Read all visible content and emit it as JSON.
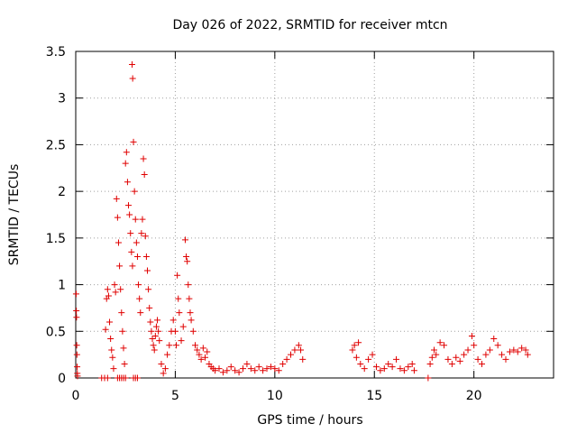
{
  "chart_data": {
    "type": "scatter",
    "title": "Day 026 of 2022, SRMTID for receiver mtcn",
    "xlabel": "GPS time / hours",
    "ylabel": "SRMTID / TECUs",
    "xlim": [
      0,
      24
    ],
    "ylim": [
      0,
      3.5
    ],
    "x_ticks": [
      0,
      5,
      10,
      15,
      20
    ],
    "x_tick_labels": [
      "0",
      "5",
      "10",
      "15",
      "20"
    ],
    "y_ticks": [
      0,
      0.5,
      1,
      1.5,
      2,
      2.5,
      3,
      3.5
    ],
    "y_tick_labels": [
      "0",
      "0.5",
      "1",
      "1.5",
      "2",
      "2.5",
      "3",
      "3.5"
    ],
    "grid": true,
    "marker": "+",
    "color": "#e00000",
    "series": [
      {
        "name": "SRMTID",
        "points": [
          [
            0.02,
            0.9
          ],
          [
            0.03,
            0.72
          ],
          [
            0.04,
            0.65
          ],
          [
            0.05,
            0.35
          ],
          [
            0.06,
            0.25
          ],
          [
            0.07,
            0.12
          ],
          [
            0.08,
            0.05
          ],
          [
            0.09,
            0.02
          ],
          [
            1.3,
            0.0
          ],
          [
            1.45,
            0.0
          ],
          [
            1.6,
            0.0
          ],
          [
            1.5,
            0.52
          ],
          [
            1.55,
            0.85
          ],
          [
            1.6,
            0.95
          ],
          [
            1.65,
            0.88
          ],
          [
            1.7,
            0.6
          ],
          [
            1.75,
            0.42
          ],
          [
            1.8,
            0.3
          ],
          [
            1.85,
            0.22
          ],
          [
            1.9,
            0.1
          ],
          [
            1.95,
            1.0
          ],
          [
            2.0,
            0.92
          ],
          [
            2.05,
            1.92
          ],
          [
            2.1,
            1.72
          ],
          [
            2.15,
            1.45
          ],
          [
            2.2,
            1.2
          ],
          [
            2.25,
            0.95
          ],
          [
            2.3,
            0.7
          ],
          [
            2.35,
            0.5
          ],
          [
            2.4,
            0.32
          ],
          [
            2.45,
            0.15
          ],
          [
            2.1,
            0.0
          ],
          [
            2.2,
            0.0
          ],
          [
            2.3,
            0.0
          ],
          [
            2.4,
            0.0
          ],
          [
            2.5,
            0.0
          ],
          [
            2.9,
            0.0
          ],
          [
            3.0,
            0.0
          ],
          [
            3.1,
            0.0
          ],
          [
            2.5,
            2.3
          ],
          [
            2.55,
            2.42
          ],
          [
            2.6,
            2.1
          ],
          [
            2.65,
            1.85
          ],
          [
            2.7,
            1.75
          ],
          [
            2.75,
            1.55
          ],
          [
            2.8,
            1.35
          ],
          [
            2.85,
            1.2
          ],
          [
            2.9,
            2.53
          ],
          [
            2.95,
            2.0
          ],
          [
            3.0,
            1.7
          ],
          [
            2.83,
            3.36
          ],
          [
            2.86,
            3.21
          ],
          [
            3.05,
            1.45
          ],
          [
            3.1,
            1.3
          ],
          [
            3.15,
            1.0
          ],
          [
            3.2,
            0.85
          ],
          [
            3.25,
            0.7
          ],
          [
            3.3,
            1.55
          ],
          [
            3.35,
            1.7
          ],
          [
            3.4,
            2.35
          ],
          [
            3.45,
            2.18
          ],
          [
            3.5,
            1.52
          ],
          [
            3.55,
            1.3
          ],
          [
            3.6,
            1.15
          ],
          [
            3.65,
            0.95
          ],
          [
            3.7,
            0.75
          ],
          [
            3.75,
            0.6
          ],
          [
            3.8,
            0.5
          ],
          [
            3.85,
            0.42
          ],
          [
            3.9,
            0.35
          ],
          [
            3.95,
            0.3
          ],
          [
            4.0,
            0.45
          ],
          [
            4.05,
            0.55
          ],
          [
            4.1,
            0.62
          ],
          [
            4.15,
            0.5
          ],
          [
            4.2,
            0.4
          ],
          [
            4.3,
            0.15
          ],
          [
            4.4,
            0.05
          ],
          [
            4.5,
            0.1
          ],
          [
            4.6,
            0.25
          ],
          [
            4.7,
            0.35
          ],
          [
            4.8,
            0.5
          ],
          [
            4.9,
            0.62
          ],
          [
            5.0,
            0.5
          ],
          [
            5.05,
            0.35
          ],
          [
            5.1,
            1.1
          ],
          [
            5.15,
            0.85
          ],
          [
            5.2,
            0.7
          ],
          [
            5.3,
            0.4
          ],
          [
            5.4,
            0.55
          ],
          [
            5.5,
            1.48
          ],
          [
            5.55,
            1.3
          ],
          [
            5.6,
            1.25
          ],
          [
            5.65,
            1.0
          ],
          [
            5.7,
            0.85
          ],
          [
            5.75,
            0.7
          ],
          [
            5.8,
            0.62
          ],
          [
            5.9,
            0.5
          ],
          [
            6.0,
            0.35
          ],
          [
            6.1,
            0.3
          ],
          [
            6.2,
            0.25
          ],
          [
            6.3,
            0.2
          ],
          [
            6.4,
            0.32
          ],
          [
            6.5,
            0.22
          ],
          [
            6.6,
            0.28
          ],
          [
            6.7,
            0.15
          ],
          [
            6.8,
            0.12
          ],
          [
            6.9,
            0.1
          ],
          [
            7.0,
            0.08
          ],
          [
            7.2,
            0.1
          ],
          [
            7.4,
            0.06
          ],
          [
            7.6,
            0.08
          ],
          [
            7.8,
            0.12
          ],
          [
            8.0,
            0.08
          ],
          [
            8.2,
            0.06
          ],
          [
            8.4,
            0.1
          ],
          [
            8.6,
            0.15
          ],
          [
            8.8,
            0.1
          ],
          [
            9.0,
            0.08
          ],
          [
            9.2,
            0.12
          ],
          [
            9.4,
            0.08
          ],
          [
            9.6,
            0.1
          ],
          [
            9.8,
            0.12
          ],
          [
            10.0,
            0.1
          ],
          [
            10.2,
            0.08
          ],
          [
            10.4,
            0.15
          ],
          [
            10.6,
            0.2
          ],
          [
            10.8,
            0.25
          ],
          [
            11.0,
            0.3
          ],
          [
            11.2,
            0.35
          ],
          [
            11.3,
            0.3
          ],
          [
            11.4,
            0.2
          ],
          [
            13.9,
            0.3
          ],
          [
            14.0,
            0.35
          ],
          [
            14.1,
            0.22
          ],
          [
            14.2,
            0.38
          ],
          [
            14.3,
            0.15
          ],
          [
            14.5,
            0.1
          ],
          [
            14.7,
            0.2
          ],
          [
            14.9,
            0.25
          ],
          [
            15.1,
            0.12
          ],
          [
            15.3,
            0.08
          ],
          [
            15.5,
            0.1
          ],
          [
            15.7,
            0.15
          ],
          [
            15.9,
            0.12
          ],
          [
            16.1,
            0.2
          ],
          [
            16.3,
            0.1
          ],
          [
            16.5,
            0.08
          ],
          [
            16.7,
            0.12
          ],
          [
            16.9,
            0.15
          ],
          [
            17.0,
            0.08
          ],
          [
            17.7,
            0.0
          ],
          [
            17.8,
            0.15
          ],
          [
            17.9,
            0.22
          ],
          [
            18.0,
            0.3
          ],
          [
            18.1,
            0.25
          ],
          [
            18.3,
            0.38
          ],
          [
            18.5,
            0.35
          ],
          [
            18.7,
            0.2
          ],
          [
            18.9,
            0.15
          ],
          [
            19.1,
            0.22
          ],
          [
            19.3,
            0.18
          ],
          [
            19.5,
            0.25
          ],
          [
            19.7,
            0.3
          ],
          [
            19.9,
            0.45
          ],
          [
            20.0,
            0.35
          ],
          [
            20.2,
            0.2
          ],
          [
            20.4,
            0.15
          ],
          [
            20.6,
            0.25
          ],
          [
            20.8,
            0.3
          ],
          [
            21.0,
            0.42
          ],
          [
            21.2,
            0.35
          ],
          [
            21.4,
            0.25
          ],
          [
            21.6,
            0.2
          ],
          [
            21.8,
            0.28
          ],
          [
            22.0,
            0.3
          ],
          [
            22.2,
            0.28
          ],
          [
            22.4,
            0.32
          ],
          [
            22.6,
            0.3
          ],
          [
            22.7,
            0.25
          ]
        ]
      }
    ]
  }
}
